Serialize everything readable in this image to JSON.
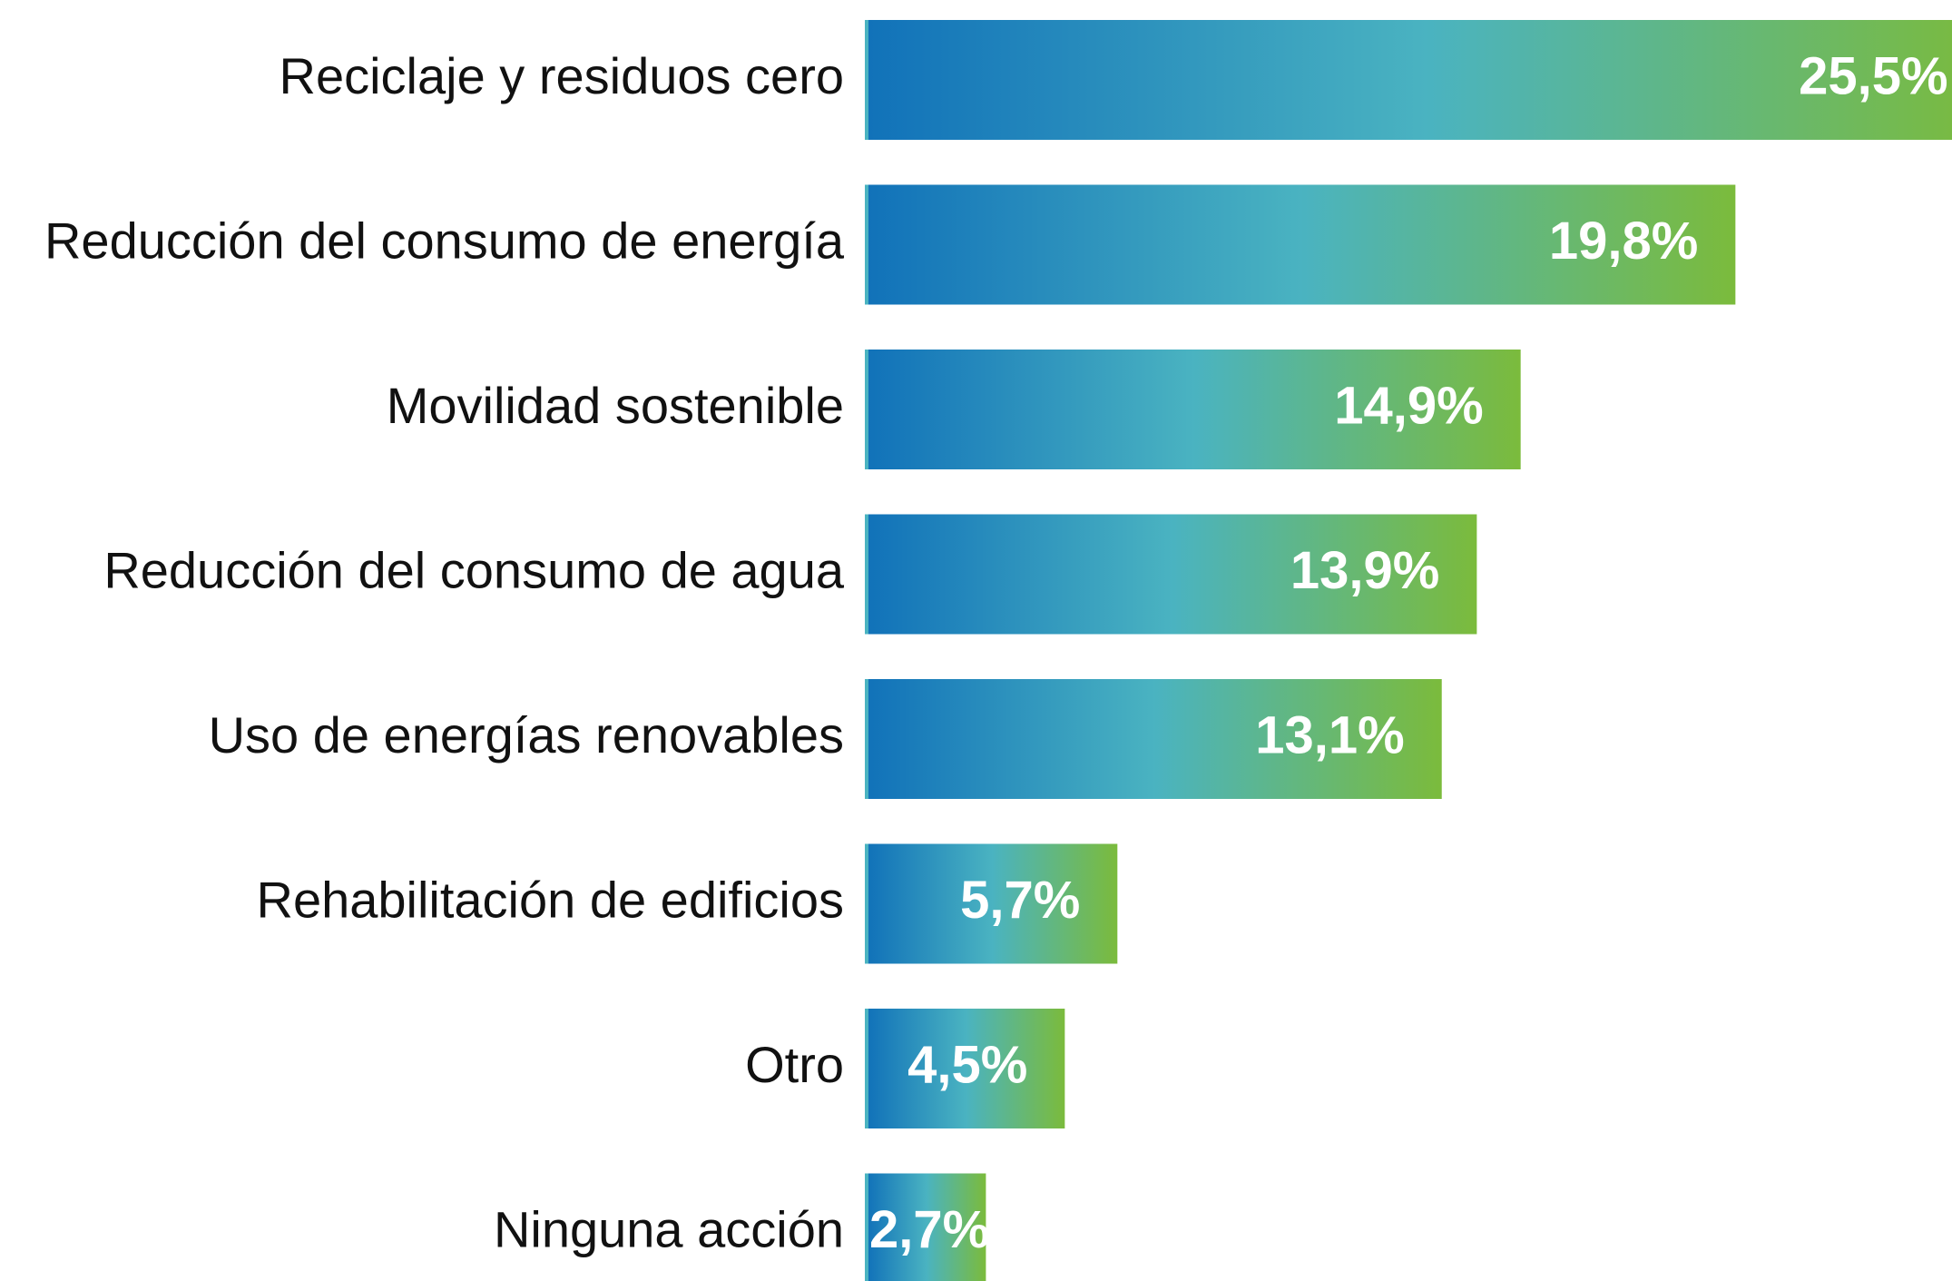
{
  "chart_data": {
    "type": "bar",
    "orientation": "horizontal",
    "categories": [
      "Reciclaje y residuos cero",
      "Reducción del consumo de energía",
      "Movilidad sostenible",
      "Reducción del consumo de agua",
      "Uso de energías renovables",
      "Rehabilitación de edificios",
      "Otro",
      "Ninguna acción"
    ],
    "values": [
      25.5,
      19.8,
      14.9,
      13.9,
      13.1,
      5.7,
      4.5,
      2.7
    ],
    "value_labels": [
      "25,5%",
      "19,8%",
      "14,9%",
      "13,9%",
      "13,1%",
      "5,7%",
      "4,5%",
      "2,7%"
    ],
    "colors": [
      "#1172b9",
      "#4ab3c1",
      "#7bbb3c"
    ]
  }
}
